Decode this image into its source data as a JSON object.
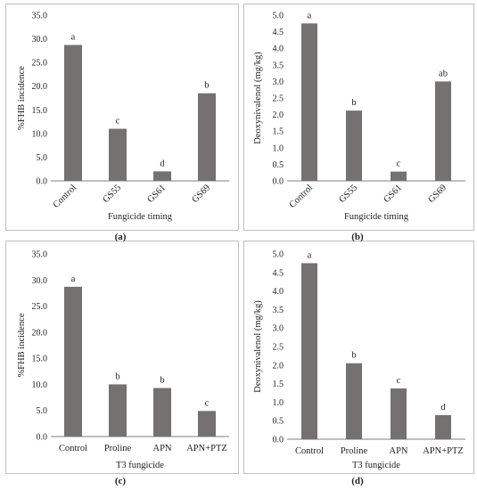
{
  "figure": {
    "captions": [
      "(a)",
      "(b)",
      "(c)",
      "(d)"
    ]
  },
  "colors": {
    "bar": "#767171",
    "axis": "#7f7f7f",
    "text": "#222222",
    "border": "#bfbfbf"
  },
  "chart_data": [
    {
      "type": "bar",
      "title": "",
      "categories": [
        "Control",
        "GS55",
        "GS61",
        "GS69"
      ],
      "values": [
        28.7,
        11.0,
        2.0,
        18.5
      ],
      "letters": [
        "a",
        "c",
        "d",
        "b"
      ],
      "xlabel": "Fungicide timing",
      "ylabel": "%FHB incidence",
      "ylim": [
        0,
        35
      ],
      "yticks": [
        "0.0",
        "5.0",
        "10.0",
        "15.0",
        "20.0",
        "25.0",
        "30.0",
        "35.0"
      ],
      "rotate_labels": true,
      "grid": false,
      "legend": "none"
    },
    {
      "type": "bar",
      "title": "",
      "categories": [
        "Control",
        "GS55",
        "GS61",
        "GS69"
      ],
      "values": [
        4.75,
        2.12,
        0.28,
        3.0
      ],
      "letters": [
        "a",
        "b",
        "c",
        "ab"
      ],
      "xlabel": "Fungicide timing",
      "ylabel": "Deoxynivalenol (mg/kg)",
      "ylim": [
        0,
        5
      ],
      "yticks": [
        "0.0",
        "0.5",
        "1.0",
        "1.5",
        "2.0",
        "2.5",
        "3.0",
        "3.5",
        "4.0",
        "4.5",
        "5.0"
      ],
      "rotate_labels": true,
      "grid": false,
      "legend": "none"
    },
    {
      "type": "bar",
      "title": "",
      "categories": [
        "Control",
        "Proline",
        "APN",
        "APN+PTZ"
      ],
      "values": [
        28.7,
        10.0,
        9.3,
        4.9
      ],
      "letters": [
        "a",
        "b",
        "b",
        "c"
      ],
      "xlabel": "T3 fungicide",
      "ylabel": "%FHB incidence",
      "ylim": [
        0,
        35
      ],
      "yticks": [
        "0.0",
        "5.0",
        "10.0",
        "15.0",
        "20.0",
        "25.0",
        "30.0",
        "35.0"
      ],
      "rotate_labels": false,
      "grid": false,
      "legend": "none"
    },
    {
      "type": "bar",
      "title": "",
      "categories": [
        "Control",
        "Proline",
        "APN",
        "APN+PTZ"
      ],
      "values": [
        4.75,
        2.05,
        1.37,
        0.65
      ],
      "letters": [
        "a",
        "b",
        "c",
        "d"
      ],
      "xlabel": "T3 fungicide",
      "ylabel": "Deoxynivalenol (mg/kg)",
      "ylim": [
        0,
        5
      ],
      "yticks": [
        "0.0",
        "0.5",
        "1.0",
        "1.5",
        "2.0",
        "2.5",
        "3.0",
        "3.5",
        "4.0",
        "4.5",
        "5.0"
      ],
      "rotate_labels": false,
      "grid": false,
      "legend": "none"
    }
  ]
}
